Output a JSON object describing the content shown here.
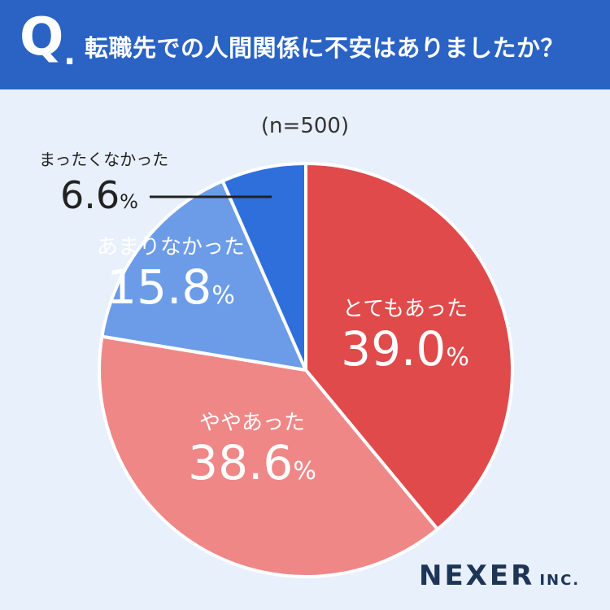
{
  "header": {
    "q_mark": "Q",
    "q_dot": ".",
    "question": "転職先での人間関係に不安はありましたか？"
  },
  "sample": "(n=500)",
  "logo": {
    "main": "NEXER",
    "sub": "INC."
  },
  "chart_data": {
    "type": "pie",
    "title": "転職先での人間関係に不安はありましたか？",
    "n": 500,
    "unit": "%",
    "slices": [
      {
        "label": "とてもあった",
        "value": 39.0,
        "color": "#e04a4a",
        "label_color": "#ffffff"
      },
      {
        "label": "ややあった",
        "value": 38.6,
        "color": "#ef8787",
        "label_color": "#ffffff"
      },
      {
        "label": "あまりなかった",
        "value": 15.8,
        "color": "#6c9ce8",
        "label_color": "#ffffff"
      },
      {
        "label": "まったくなかった",
        "value": 6.6,
        "color": "#2e6fdb",
        "label_color": "#222222"
      }
    ]
  }
}
